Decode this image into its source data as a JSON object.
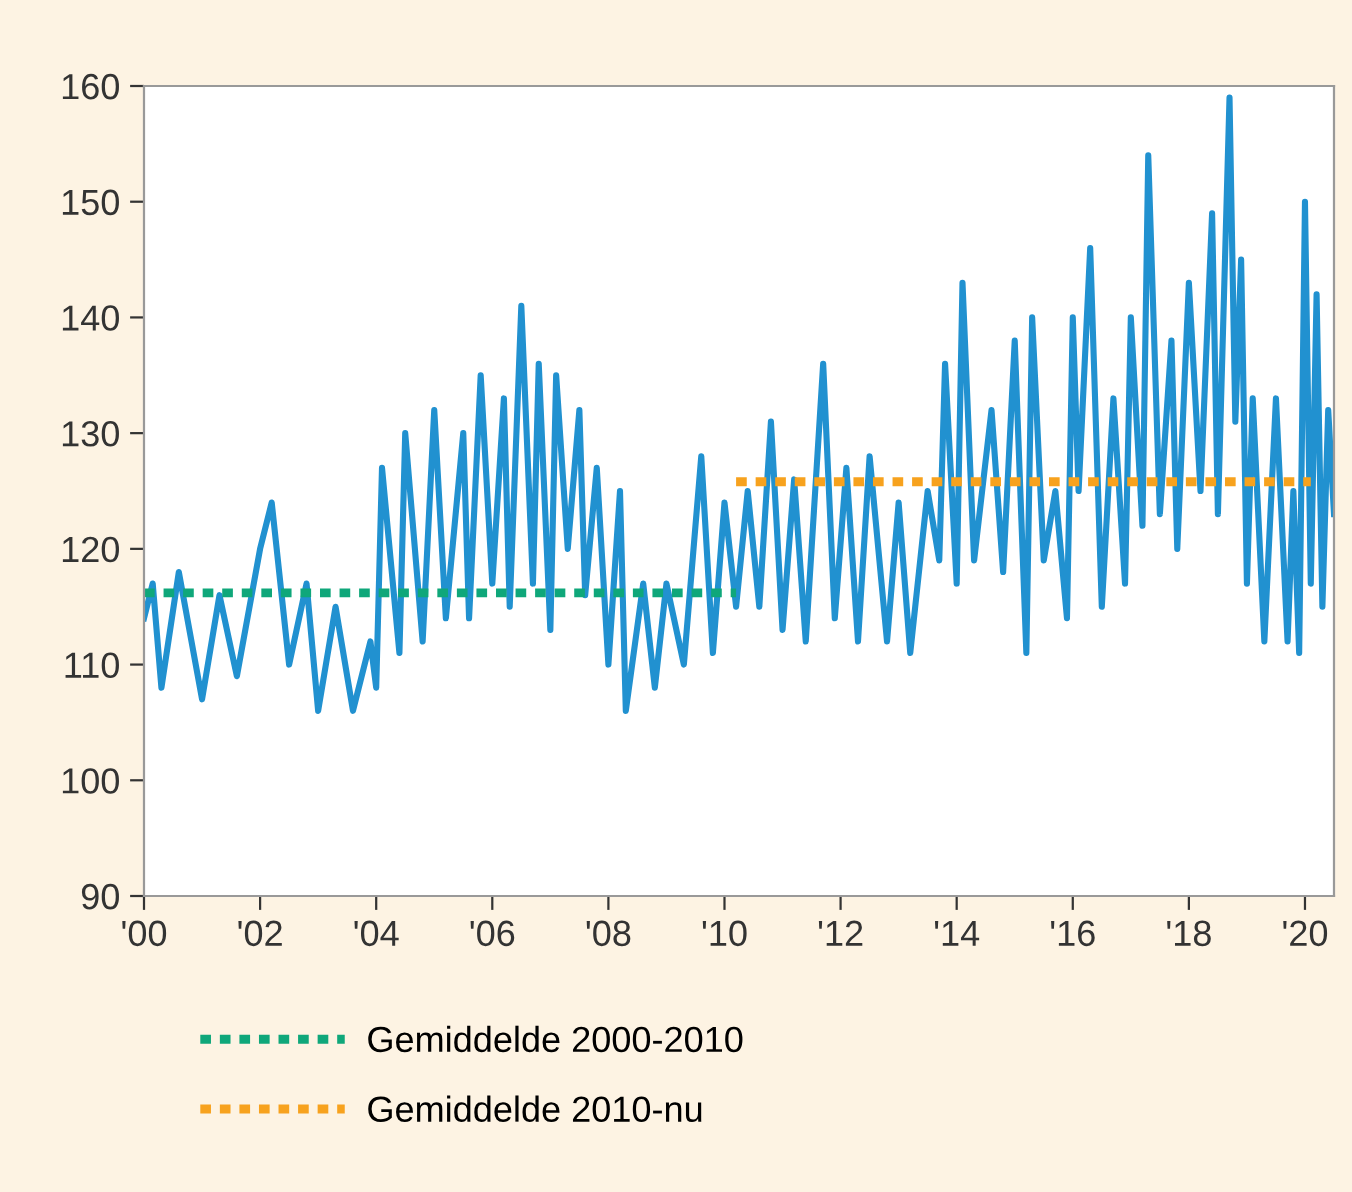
{
  "chart_data": {
    "type": "line",
    "xlim": [
      2000,
      2020.5
    ],
    "ylim": [
      90,
      160
    ],
    "xticks": [
      {
        "value": 2000,
        "label": "'00"
      },
      {
        "value": 2002,
        "label": "'02"
      },
      {
        "value": 2004,
        "label": "'04"
      },
      {
        "value": 2006,
        "label": "'06"
      },
      {
        "value": 2008,
        "label": "'08"
      },
      {
        "value": 2010,
        "label": "'10"
      },
      {
        "value": 2012,
        "label": "'12"
      },
      {
        "value": 2014,
        "label": "'14"
      },
      {
        "value": 2016,
        "label": "'16"
      },
      {
        "value": 2018,
        "label": "'18"
      },
      {
        "value": 2020,
        "label": "'20"
      }
    ],
    "yticks": [
      90,
      100,
      110,
      120,
      130,
      140,
      150,
      160
    ],
    "grid": false,
    "legend": "bottom",
    "series": [
      {
        "color": "#2191d0",
        "line_style": "solid",
        "x": [
          2000,
          2000.15,
          2000.3,
          2000.6,
          2001,
          2001.3,
          2001.6,
          2002,
          2002.2,
          2002.5,
          2002.8,
          2003,
          2003.3,
          2003.6,
          2003.9,
          2004,
          2004.1,
          2004.4,
          2004.5,
          2004.8,
          2005,
          2005.2,
          2005.5,
          2005.6,
          2005.8,
          2006,
          2006.2,
          2006.3,
          2006.5,
          2006.7,
          2006.8,
          2007,
          2007.1,
          2007.3,
          2007.5,
          2007.6,
          2007.8,
          2008,
          2008.2,
          2008.3,
          2008.6,
          2008.8,
          2009,
          2009.3,
          2009.6,
          2009.8,
          2010,
          2010.2,
          2010.4,
          2010.6,
          2010.8,
          2011,
          2011.2,
          2011.4,
          2011.7,
          2011.9,
          2012.1,
          2012.3,
          2012.5,
          2012.8,
          2013,
          2013.2,
          2013.5,
          2013.7,
          2013.8,
          2014,
          2014.1,
          2014.3,
          2014.6,
          2014.8,
          2015,
          2015.2,
          2015.3,
          2015.5,
          2015.7,
          2015.9,
          2016,
          2016.1,
          2016.3,
          2016.5,
          2016.7,
          2016.9,
          2017,
          2017.2,
          2017.3,
          2017.5,
          2017.7,
          2017.8,
          2018,
          2018.2,
          2018.4,
          2018.5,
          2018.7,
          2018.8,
          2018.9,
          2019,
          2019.1,
          2019.3,
          2019.5,
          2019.7,
          2019.8,
          2019.9,
          2020,
          2020.1,
          2020.2,
          2020.3,
          2020.4,
          2020.5
        ],
        "values": [
          114,
          117,
          108,
          118,
          107,
          116,
          109,
          120,
          124,
          110,
          117,
          106,
          115,
          106,
          112,
          108,
          127,
          111,
          130,
          112,
          132,
          114,
          130,
          114,
          135,
          117,
          133,
          115,
          141,
          117,
          136,
          113,
          135,
          120,
          132,
          116,
          127,
          110,
          125,
          106,
          117,
          108,
          117,
          110,
          128,
          111,
          124,
          115,
          125,
          115,
          131,
          113,
          126,
          112,
          136,
          114,
          127,
          112,
          128,
          112,
          124,
          111,
          125,
          119,
          136,
          117,
          143,
          119,
          132,
          118,
          138,
          111,
          140,
          119,
          125,
          114,
          140,
          125,
          146,
          115,
          133,
          117,
          140,
          122,
          154,
          123,
          138,
          120,
          143,
          125,
          149,
          123,
          159,
          131,
          145,
          117,
          133,
          112,
          133,
          112,
          125,
          111,
          150,
          117,
          142,
          115,
          132,
          123
        ]
      },
      {
        "name": "Gemiddelde 2000-2010",
        "color": "#0fa77a",
        "line_style": "dotted",
        "x": [
          2000,
          2010.2
        ],
        "values": [
          116.2,
          116.2
        ]
      },
      {
        "name": "Gemiddelde 2010-nu",
        "color": "#f7a21e",
        "line_style": "dotted",
        "x": [
          2010.2,
          2020.1
        ],
        "values": [
          125.8,
          125.8
        ]
      }
    ]
  }
}
